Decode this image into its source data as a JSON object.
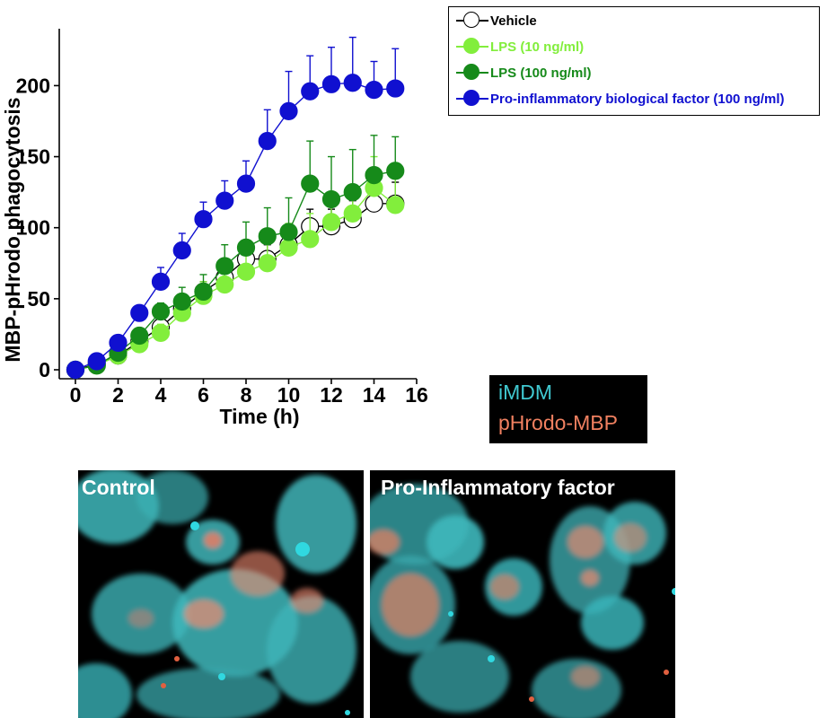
{
  "chart_data": {
    "type": "line",
    "xlabel": "Time (h)",
    "ylabel": "MBP-pHrodo phagocytosis",
    "xlim": [
      0,
      16
    ],
    "ylim": [
      0,
      235
    ],
    "xticks": [
      0,
      2,
      4,
      6,
      8,
      10,
      12,
      14,
      16
    ],
    "yticks": [
      0,
      50,
      100,
      150,
      200
    ],
    "grid": false,
    "legend_position": "top-right",
    "x": [
      0,
      1,
      2,
      3,
      4,
      5,
      6,
      7,
      8,
      9,
      10,
      11,
      12,
      13,
      14,
      15
    ],
    "series": [
      {
        "name": "Vehicle",
        "color": "#000000",
        "fill": "#ffffff",
        "values": [
          0,
          4,
          10,
          20,
          30,
          43,
          55,
          65,
          78,
          78,
          88,
          101,
          101,
          106,
          117,
          117
        ],
        "errors": [
          0,
          2,
          3,
          4,
          5,
          6,
          7,
          8,
          9,
          10,
          10,
          12,
          12,
          13,
          14,
          15
        ]
      },
      {
        "name": "LPS (10 ng/ml)",
        "color": "#82ee3c",
        "fill": "#82ee3c",
        "values": [
          0,
          3,
          10,
          18,
          26,
          40,
          52,
          60,
          69,
          75,
          86,
          92,
          104,
          110,
          128,
          116
        ],
        "errors": [
          0,
          2,
          3,
          5,
          6,
          9,
          10,
          12,
          14,
          15,
          17,
          18,
          20,
          20,
          22,
          22
        ]
      },
      {
        "name": "LPS (100 ng/ml)",
        "color": "#168a1a",
        "fill": "#168a1a",
        "values": [
          0,
          3,
          12,
          24,
          41,
          48,
          55,
          73,
          86,
          94,
          97,
          131,
          120,
          125,
          137,
          140
        ],
        "errors": [
          0,
          2,
          3,
          4,
          6,
          10,
          12,
          15,
          18,
          20,
          24,
          30,
          30,
          30,
          28,
          24
        ]
      },
      {
        "name": "Pro-inflammatory biological factor (100 ng/ml)",
        "color": "#1010d0",
        "fill": "#1010d0",
        "values": [
          0,
          6,
          19,
          40,
          62,
          84,
          106,
          119,
          131,
          161,
          182,
          196,
          201,
          202,
          197,
          198
        ],
        "errors": [
          0,
          2,
          4,
          5,
          10,
          12,
          12,
          14,
          16,
          22,
          28,
          25,
          26,
          32,
          20,
          28
        ]
      }
    ]
  },
  "image_key": {
    "line1": "iMDM",
    "line1_color": "#40c8d0",
    "line2": "pHrodo-MBP",
    "line2_color": "#f08060"
  },
  "panels": {
    "left_title": "Control",
    "right_title": "Pro-Inflammatory factor"
  }
}
